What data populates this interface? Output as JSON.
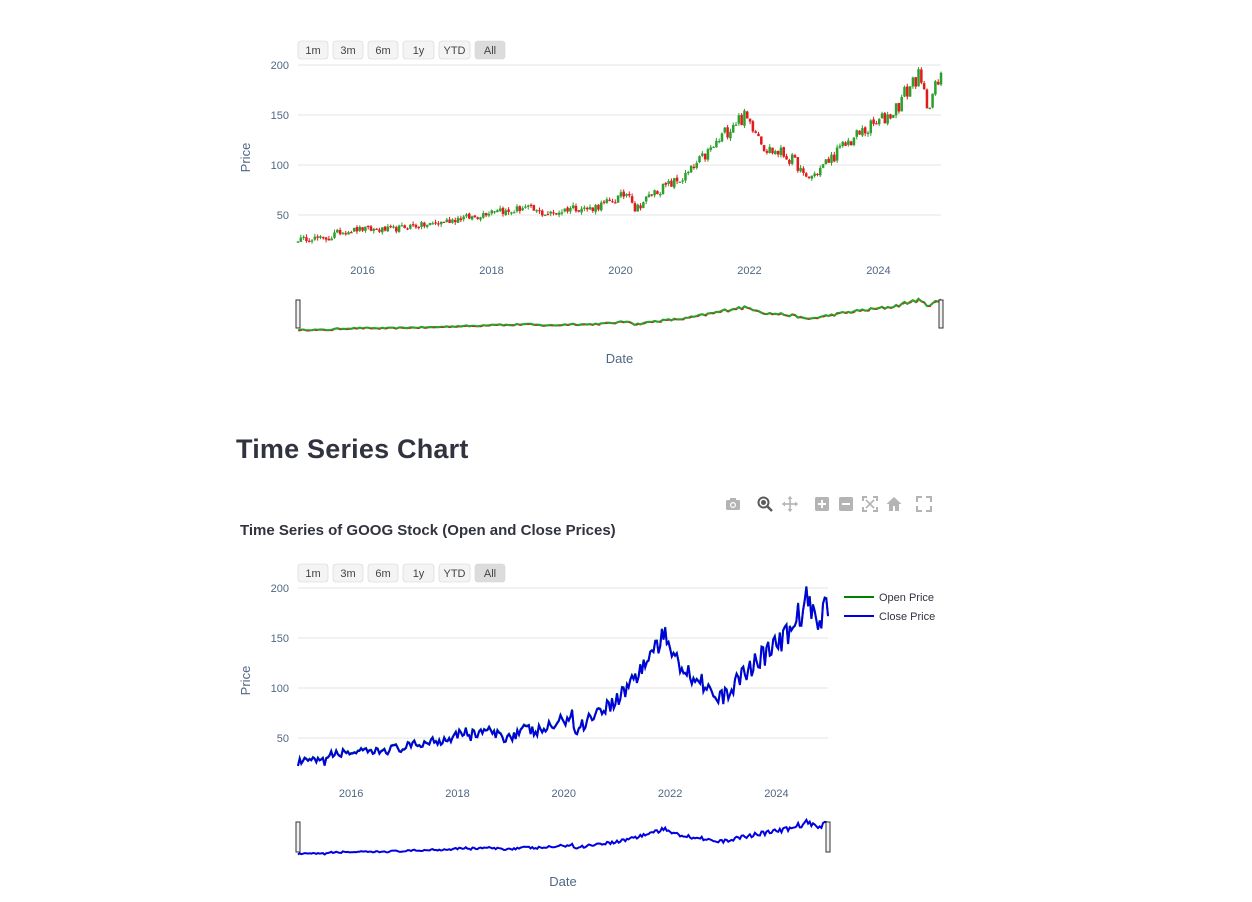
{
  "page": {
    "section_title": "Time Series Chart",
    "modebar": {
      "icons": [
        "camera-icon",
        "zoom-icon",
        "pan-icon",
        "zoom-in-icon",
        "zoom-out-icon",
        "autoscale-icon",
        "reset-axes-icon",
        "fullscreen-icon"
      ]
    }
  },
  "range_buttons": [
    "1m",
    "3m",
    "6m",
    "1y",
    "YTD",
    "All"
  ],
  "active_range": "All",
  "colors": {
    "increasing": "#2ca02c",
    "decreasing": "#e31a1c",
    "open_line": "#008000",
    "close_line": "#0000e0",
    "grid": "#e6e6e6",
    "tick_text": "#506784",
    "button_bg": "#f4f4f4",
    "button_active_bg": "#dcdcdc"
  },
  "chart_data": [
    {
      "type": "candlestick",
      "title": "",
      "xlabel": "Date",
      "ylabel": "Price",
      "x_range": [
        2015.0,
        2024.97
      ],
      "y_range": [
        15,
        200
      ],
      "y_ticks": [
        50,
        100,
        150,
        200
      ],
      "x_ticks": [
        "2016",
        "2018",
        "2020",
        "2022",
        "2024"
      ],
      "rangeslider": true,
      "grid": true,
      "series": [
        {
          "x": [
            2015.0,
            2015.25,
            2015.5,
            2015.58,
            2015.75,
            2016.0,
            2016.25,
            2016.5,
            2016.75,
            2017.0,
            2017.25,
            2017.5,
            2017.75,
            2018.0,
            2018.1,
            2018.25,
            2018.5,
            2018.75,
            2018.95,
            2019.25,
            2019.5,
            2019.75,
            2020.0,
            2020.15,
            2020.22,
            2020.5,
            2020.75,
            2021.0,
            2021.25,
            2021.5,
            2021.75,
            2021.9,
            2022.1,
            2022.25,
            2022.5,
            2022.75,
            2022.85,
            2023.0,
            2023.25,
            2023.5,
            2023.75,
            2024.0,
            2024.25,
            2024.5,
            2024.6,
            2024.75,
            2024.97
          ],
          "close": [
            25.5,
            27,
            26,
            32,
            34,
            36,
            35,
            36,
            39,
            40,
            43,
            47,
            48,
            55,
            57,
            52,
            58,
            52,
            51,
            58,
            56,
            61,
            68,
            74,
            55,
            72,
            80,
            88,
            105,
            122,
            143,
            148,
            138,
            116,
            112,
            100,
            86,
            90,
            106,
            121,
            133,
            142,
            155,
            180,
            190,
            162,
            185
          ]
        }
      ]
    },
    {
      "type": "line",
      "title": "Time Series of GOOG Stock (Open and Close Prices)",
      "xlabel": "Date",
      "ylabel": "Price",
      "x_range": [
        2015.0,
        2024.97
      ],
      "y_range": [
        15,
        200
      ],
      "y_ticks": [
        50,
        100,
        150,
        200
      ],
      "x_ticks": [
        "2016",
        "2018",
        "2020",
        "2022",
        "2024"
      ],
      "rangeslider": true,
      "legend_position": "top-right",
      "grid": true,
      "series": [
        {
          "name": "Open Price",
          "x": [
            2015.0,
            2015.25,
            2015.5,
            2015.58,
            2015.75,
            2016.0,
            2016.25,
            2016.5,
            2016.75,
            2017.0,
            2017.25,
            2017.5,
            2017.75,
            2018.0,
            2018.1,
            2018.25,
            2018.5,
            2018.75,
            2018.95,
            2019.25,
            2019.5,
            2019.75,
            2020.0,
            2020.15,
            2020.22,
            2020.5,
            2020.75,
            2021.0,
            2021.25,
            2021.5,
            2021.75,
            2021.9,
            2022.1,
            2022.25,
            2022.5,
            2022.75,
            2022.85,
            2023.0,
            2023.25,
            2023.5,
            2023.75,
            2024.0,
            2024.25,
            2024.5,
            2024.6,
            2024.75,
            2024.97
          ],
          "y": [
            25.5,
            27,
            26,
            32,
            34,
            36,
            35,
            36,
            39,
            40,
            43,
            47,
            48,
            55,
            57,
            52,
            58,
            52,
            51,
            58,
            56,
            61,
            68,
            74,
            55,
            72,
            80,
            88,
            105,
            122,
            143,
            148,
            138,
            116,
            112,
            100,
            86,
            90,
            106,
            121,
            133,
            142,
            155,
            180,
            190,
            162,
            185
          ]
        },
        {
          "name": "Close Price",
          "x": [
            2015.0,
            2015.25,
            2015.5,
            2015.58,
            2015.75,
            2016.0,
            2016.25,
            2016.5,
            2016.75,
            2017.0,
            2017.25,
            2017.5,
            2017.75,
            2018.0,
            2018.1,
            2018.25,
            2018.5,
            2018.75,
            2018.95,
            2019.25,
            2019.5,
            2019.75,
            2020.0,
            2020.15,
            2020.22,
            2020.5,
            2020.75,
            2021.0,
            2021.25,
            2021.5,
            2021.75,
            2021.9,
            2022.1,
            2022.25,
            2022.5,
            2022.75,
            2022.85,
            2023.0,
            2023.25,
            2023.5,
            2023.75,
            2024.0,
            2024.25,
            2024.5,
            2024.6,
            2024.75,
            2024.97
          ],
          "y": [
            25.5,
            27,
            26,
            32,
            34,
            36,
            35,
            36,
            39,
            40,
            43,
            47,
            48,
            55,
            57,
            52,
            58,
            52,
            51,
            58,
            56,
            61,
            68,
            74,
            55,
            72,
            80,
            88,
            105,
            122,
            143,
            148,
            138,
            116,
            112,
            100,
            86,
            90,
            106,
            121,
            133,
            142,
            155,
            180,
            190,
            162,
            185
          ]
        }
      ]
    }
  ]
}
